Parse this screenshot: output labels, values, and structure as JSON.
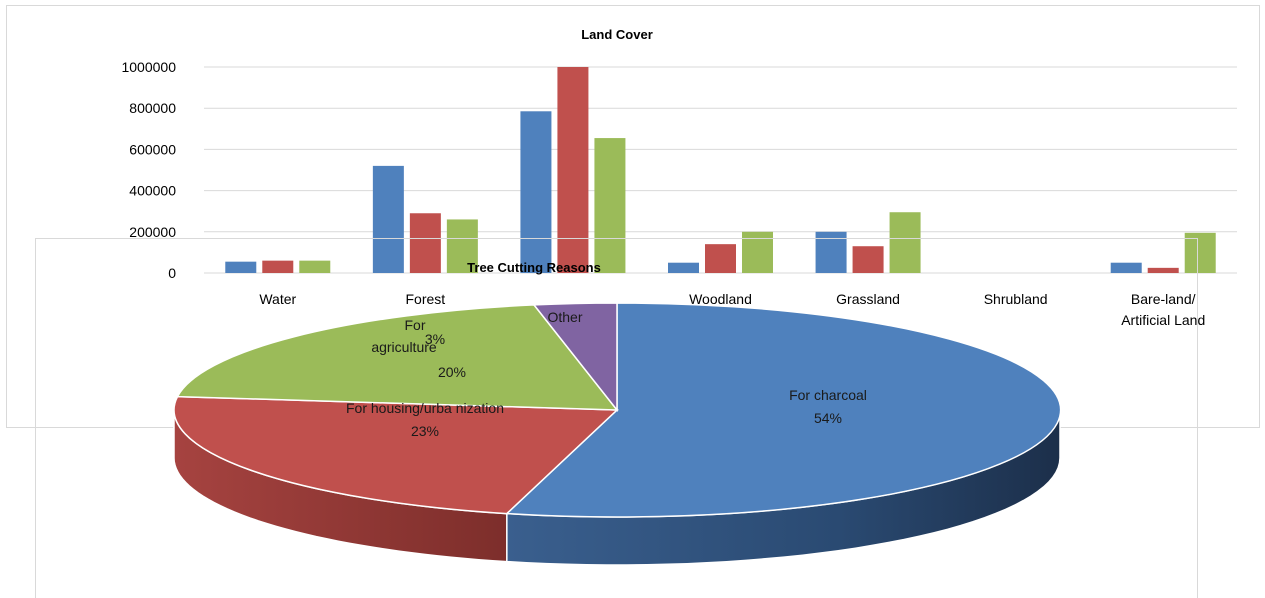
{
  "chart_data": [
    {
      "type": "bar",
      "title": "Land Cover",
      "categories": [
        "Water",
        "Forest",
        "",
        "Woodland",
        "Grassland",
        "Shrubland",
        "Bare-land/ Artificial Land"
      ],
      "category_lines": [
        [
          "Water"
        ],
        [
          "Forest"
        ],
        [
          ""
        ],
        [
          "Woodland"
        ],
        [
          "Grassland"
        ],
        [
          "Shrubland"
        ],
        [
          "Bare-land/",
          "Artificial Land"
        ]
      ],
      "series": [
        {
          "color": "#4f81bd",
          "values": [
            55000,
            520000,
            785000,
            50000,
            200000,
            0,
            50000
          ]
        },
        {
          "color": "#c0504d",
          "values": [
            60000,
            290000,
            1000000,
            140000,
            130000,
            0,
            25000
          ]
        },
        {
          "color": "#9bbb59",
          "values": [
            60000,
            260000,
            655000,
            200000,
            295000,
            0,
            195000
          ]
        }
      ],
      "ylim": [
        0,
        1000000
      ],
      "yticks": [
        0,
        200000,
        400000,
        600000,
        800000,
        1000000
      ],
      "ytick_labels": [
        "0",
        "200000",
        "400000",
        "600000",
        "800000",
        "1000000"
      ],
      "grid": true,
      "legend": "none"
    },
    {
      "type": "pie",
      "title": "Tree Cutting Reasons",
      "slices": [
        {
          "label_lines": [
            "For charcoal",
            "54%"
          ],
          "value": 54,
          "color": "#4f81bd"
        },
        {
          "label_lines": [
            "For   housing/urba  nization",
            "23%"
          ],
          "value": 23,
          "color": "#c0504d"
        },
        {
          "label_lines": [
            "For",
            "agriculture",
            "20%"
          ],
          "value": 20,
          "color": "#9bbb59"
        },
        {
          "label_lines": [
            "Other",
            "3%"
          ],
          "value": 3,
          "color": "#8064a2"
        }
      ],
      "style": "3d"
    }
  ]
}
